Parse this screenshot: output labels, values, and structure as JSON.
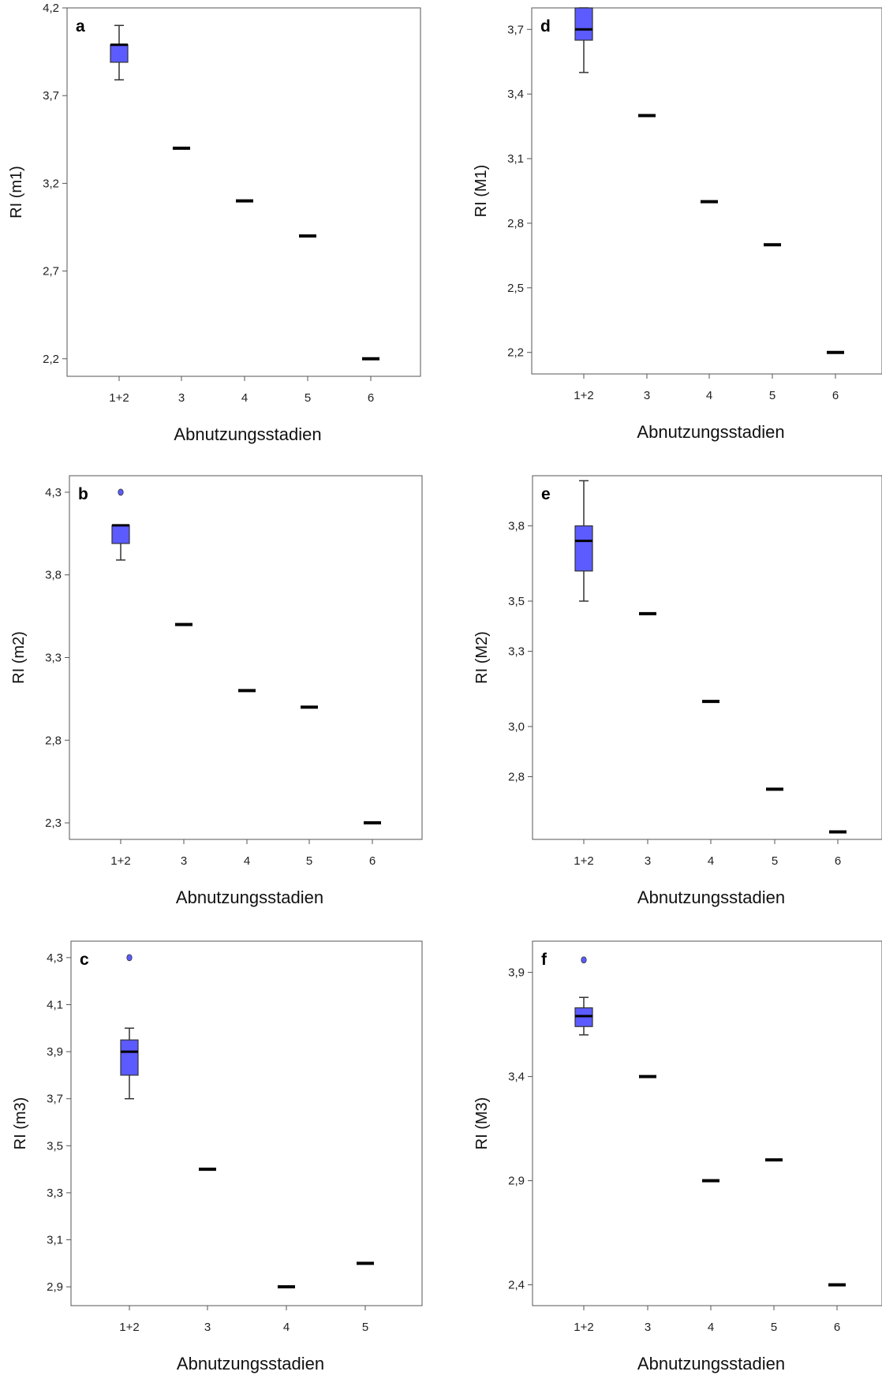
{
  "chart_data": [
    {
      "panel_label": "a",
      "type": "box",
      "xlabel": "Abnutzungsstadien",
      "ylabel": "RI (m1)",
      "categories": [
        "1+2",
        "3",
        "4",
        "5",
        "6"
      ],
      "yticks": [
        "2,2",
        "2,7",
        "3,2",
        "3,7",
        "4,2"
      ],
      "ylim": [
        2.1,
        4.2
      ],
      "boxes": [
        {
          "category": "1+2",
          "min": 3.79,
          "q1": 3.89,
          "median": 3.99,
          "q3": 3.99,
          "max": 4.1
        },
        {
          "category": "3",
          "median": 3.4
        },
        {
          "category": "4",
          "median": 3.1
        },
        {
          "category": "5",
          "median": 2.9
        },
        {
          "category": "6",
          "median": 2.2
        }
      ],
      "outliers": []
    },
    {
      "panel_label": "d",
      "type": "box",
      "xlabel": "Abnutzungsstadien",
      "ylabel": "RI (M1)",
      "categories": [
        "1+2",
        "3",
        "4",
        "5",
        "6"
      ],
      "yticks": [
        "2,2",
        "2,5",
        "2,8",
        "3,1",
        "3,4",
        "3,7"
      ],
      "ylim": [
        2.1,
        3.8
      ],
      "boxes": [
        {
          "category": "1+2",
          "min": 3.5,
          "q1": 3.65,
          "median": 3.7,
          "q3": 3.8,
          "max": 3.8
        },
        {
          "category": "3",
          "median": 3.3
        },
        {
          "category": "4",
          "median": 2.9
        },
        {
          "category": "5",
          "median": 2.7
        },
        {
          "category": "6",
          "median": 2.2
        }
      ],
      "outliers": []
    },
    {
      "panel_label": "b",
      "type": "box",
      "xlabel": "Abnutzungsstadien",
      "ylabel": "RI (m2)",
      "categories": [
        "1+2",
        "3",
        "4",
        "5",
        "6"
      ],
      "yticks": [
        "2,3",
        "2,8",
        "3,3",
        "3,8",
        "4,3"
      ],
      "ylim": [
        2.2,
        4.4
      ],
      "boxes": [
        {
          "category": "1+2",
          "min": 3.89,
          "q1": 3.99,
          "median": 4.1,
          "q3": 4.1,
          "max": 4.1
        },
        {
          "category": "3",
          "median": 3.5
        },
        {
          "category": "4",
          "median": 3.1
        },
        {
          "category": "5",
          "median": 3.0
        },
        {
          "category": "6",
          "median": 2.3
        }
      ],
      "outliers": [
        {
          "category": "1+2",
          "value": 4.3
        }
      ]
    },
    {
      "panel_label": "e",
      "type": "box",
      "xlabel": "Abnutzungsstadien",
      "ylabel": "RI (M2)",
      "categories": [
        "1+2",
        "3",
        "4",
        "5",
        "6"
      ],
      "yticks": [
        "2,8",
        "3,0",
        "3,3",
        "3,5",
        "3,8"
      ],
      "ylim": [
        2.55,
        4.0
      ],
      "boxes": [
        {
          "category": "1+2",
          "min": 3.5,
          "q1": 3.62,
          "median": 3.74,
          "q3": 3.8,
          "max": 3.98
        },
        {
          "category": "3",
          "median": 3.45
        },
        {
          "category": "4",
          "median": 3.1
        },
        {
          "category": "5",
          "median": 2.75
        },
        {
          "category": "6",
          "median": 2.58
        }
      ],
      "outliers": []
    },
    {
      "panel_label": "c",
      "type": "box",
      "xlabel": "Abnutzungsstadien",
      "ylabel": "RI (m3)",
      "categories": [
        "1+2",
        "3",
        "4",
        "5"
      ],
      "yticks": [
        "2,9",
        "3,1",
        "3,3",
        "3,5",
        "3,7",
        "3,9",
        "4,1",
        "4,3"
      ],
      "ylim": [
        2.82,
        4.37
      ],
      "boxes": [
        {
          "category": "1+2",
          "min": 3.7,
          "q1": 3.8,
          "median": 3.9,
          "q3": 3.95,
          "max": 4.0
        },
        {
          "category": "3",
          "median": 3.4
        },
        {
          "category": "4",
          "median": 2.9
        },
        {
          "category": "5",
          "median": 3.0
        }
      ],
      "outliers": [
        {
          "category": "1+2",
          "value": 4.3
        }
      ]
    },
    {
      "panel_label": "f",
      "type": "box",
      "xlabel": "Abnutzungsstadien",
      "ylabel": "RI (M3)",
      "categories": [
        "1+2",
        "3",
        "4",
        "5",
        "6"
      ],
      "yticks": [
        "2,4",
        "2,9",
        "3,4",
        "3,9"
      ],
      "ylim": [
        2.3,
        4.05
      ],
      "boxes": [
        {
          "category": "1+2",
          "min": 3.6,
          "q1": 3.64,
          "median": 3.69,
          "q3": 3.73,
          "max": 3.78
        },
        {
          "category": "3",
          "median": 3.4
        },
        {
          "category": "4",
          "median": 2.9
        },
        {
          "category": "5",
          "median": 3.0
        },
        {
          "category": "6",
          "median": 2.4
        }
      ],
      "outliers": [
        {
          "category": "1+2",
          "value": 3.96
        }
      ]
    }
  ],
  "colors": {
    "box_fill": "#5b5bff",
    "box_stroke": "#333333",
    "median": "#000000"
  }
}
